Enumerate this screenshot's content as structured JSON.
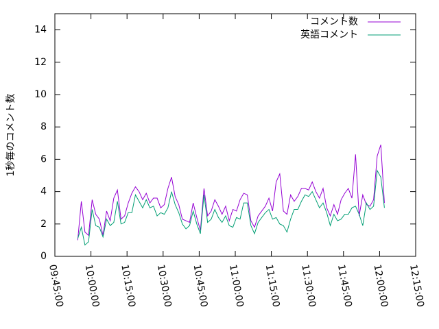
{
  "chart_data": {
    "type": "line",
    "ylabel": "1秒毎のコメント数",
    "xlim": [
      "09:45:00",
      "12:15:00"
    ],
    "xticks": [
      "09:45:00",
      "10:00:00",
      "10:15:00",
      "10:30:00",
      "10:45:00",
      "11:00:00",
      "11:15:00",
      "11:30:00",
      "11:45:00",
      "12:00:00",
      "12:15:00"
    ],
    "ylim": [
      0,
      15
    ],
    "yticks": [
      0,
      2,
      4,
      6,
      8,
      10,
      12,
      14
    ],
    "legend": "top-right",
    "x": [
      "09:54:30",
      "09:56:00",
      "09:57:30",
      "09:59:00",
      "10:00:30",
      "10:02:00",
      "10:03:30",
      "10:05:00",
      "10:06:30",
      "10:08:00",
      "10:09:30",
      "10:11:00",
      "10:12:30",
      "10:14:00",
      "10:15:30",
      "10:17:00",
      "10:18:30",
      "10:20:00",
      "10:21:30",
      "10:23:00",
      "10:24:30",
      "10:26:00",
      "10:27:30",
      "10:29:00",
      "10:30:30",
      "10:32:00",
      "10:33:30",
      "10:35:00",
      "10:36:30",
      "10:38:00",
      "10:39:30",
      "10:41:00",
      "10:42:30",
      "10:44:00",
      "10:45:30",
      "10:47:00",
      "10:48:30",
      "10:50:00",
      "10:51:30",
      "10:53:00",
      "10:54:30",
      "10:56:00",
      "10:57:30",
      "10:59:00",
      "11:00:30",
      "11:02:00",
      "11:03:30",
      "11:05:00",
      "11:06:30",
      "11:08:00",
      "11:09:30",
      "11:11:00",
      "11:12:30",
      "11:14:00",
      "11:15:30",
      "11:17:00",
      "11:18:30",
      "11:20:00",
      "11:21:30",
      "11:23:00",
      "11:24:30",
      "11:26:00",
      "11:27:30",
      "11:29:00",
      "11:30:30",
      "11:32:00",
      "11:33:30",
      "11:35:00",
      "11:36:30",
      "11:38:00",
      "11:39:30",
      "11:41:00",
      "11:42:30",
      "11:44:00",
      "11:45:30",
      "11:47:00",
      "11:48:30",
      "11:50:00",
      "11:51:30",
      "11:53:00",
      "11:54:30",
      "11:56:00",
      "11:57:30",
      "11:59:00",
      "12:00:30",
      "12:02:00"
    ],
    "series": [
      {
        "name": "コメント数",
        "color": "#9400d3",
        "values": [
          1.0,
          3.4,
          1.5,
          1.3,
          3.5,
          2.6,
          2.3,
          1.3,
          2.8,
          2.2,
          3.6,
          4.1,
          2.3,
          2.5,
          3.3,
          3.9,
          4.3,
          4.0,
          3.5,
          3.9,
          3.3,
          3.6,
          3.6,
          3.0,
          3.2,
          4.2,
          4.9,
          3.7,
          3.2,
          2.3,
          2.2,
          2.1,
          3.3,
          2.4,
          1.6,
          4.2,
          2.5,
          2.8,
          3.5,
          3.1,
          2.6,
          3.1,
          2.2,
          2.9,
          2.8,
          3.5,
          3.9,
          3.8,
          2.2,
          1.8,
          2.5,
          2.8,
          3.1,
          3.6,
          2.8,
          4.6,
          5.1,
          2.8,
          2.6,
          3.8,
          3.4,
          3.7,
          4.2,
          4.2,
          4.1,
          4.6,
          4.0,
          3.6,
          4.2,
          3.0,
          2.5,
          3.2,
          2.6,
          3.5,
          3.9,
          4.2,
          3.6,
          6.3,
          2.5,
          3.8,
          3.2,
          3.1,
          3.5,
          6.2,
          6.9,
          3.3
        ]
      },
      {
        "name": "英語コメント",
        "color": "#009e73",
        "values": [
          1.1,
          1.8,
          0.7,
          0.9,
          2.9,
          1.9,
          1.8,
          1.2,
          2.3,
          1.9,
          2.1,
          3.4,
          2.0,
          2.1,
          2.7,
          2.7,
          3.8,
          3.4,
          3.0,
          3.5,
          3.0,
          3.1,
          2.5,
          2.7,
          2.6,
          3.0,
          4.0,
          3.2,
          2.7,
          2.0,
          1.7,
          1.9,
          2.8,
          2.0,
          1.4,
          3.8,
          2.1,
          2.3,
          2.9,
          2.4,
          2.1,
          2.5,
          1.9,
          1.8,
          2.4,
          2.3,
          3.3,
          3.3,
          1.9,
          1.4,
          2.1,
          2.4,
          2.7,
          2.9,
          2.3,
          2.4,
          2.0,
          1.9,
          1.5,
          2.3,
          2.9,
          2.9,
          3.4,
          3.8,
          3.7,
          4.0,
          3.5,
          3.0,
          3.3,
          2.7,
          1.9,
          2.6,
          2.2,
          2.3,
          2.6,
          2.6,
          3.0,
          3.1,
          2.6,
          1.9,
          3.3,
          2.9,
          3.1,
          5.3,
          4.9,
          3.0
        ]
      }
    ]
  }
}
